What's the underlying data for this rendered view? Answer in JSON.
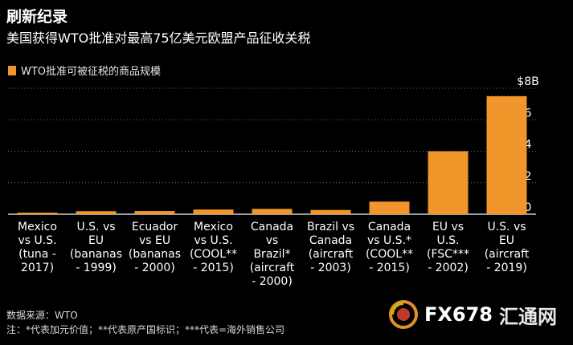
{
  "title": "刷新纪录",
  "subtitle": "美国获得WTO批准对最高75亿美元欧盟产品征收关税",
  "footer": {
    "source": "数据来源：WTO",
    "note": "注：*代表加元价值；**代表原产国标识；***代表=海外销售公司"
  },
  "watermark": {
    "text": "FX678",
    "cn": "汇通网"
  },
  "colors": {
    "bar": "#f0962a",
    "background": "#000000",
    "grid": "#6e6e6e",
    "axis": "#cfcfcf"
  },
  "chart_data": {
    "type": "bar",
    "series": [
      {
        "name": "WTO批准可被征税的商品规模",
        "values": [
          0.1,
          0.19,
          0.2,
          0.3,
          0.34,
          0.27,
          0.8,
          4.0,
          7.5
        ]
      }
    ],
    "categories": [
      [
        "Mexico",
        "vs U.S.",
        "(tuna -",
        "2017)"
      ],
      [
        "U.S. vs",
        "EU",
        "(bananas",
        "- 1999)"
      ],
      [
        "Ecuador",
        "vs EU",
        "(bananas",
        "- 2000)"
      ],
      [
        "Mexico",
        "vs U.S.",
        "(COOL**",
        "- 2015)"
      ],
      [
        "Canada",
        "vs",
        "Brazil*",
        "(aircraft",
        "- 2000)"
      ],
      [
        "Brazil vs",
        "Canada",
        "(aircraft",
        "- 2003)"
      ],
      [
        "Canada",
        "vs U.S.*",
        "(COOL**",
        "- 2015)"
      ],
      [
        "EU vs",
        "U.S.",
        "(FSC***",
        "- 2002)"
      ],
      [
        "U.S. vs",
        "EU",
        "(aircraft",
        "- 2019)"
      ]
    ],
    "yticks": [
      "0",
      "2",
      "4",
      "6",
      "$8B"
    ],
    "ylim": [
      0,
      8
    ],
    "grid": true,
    "y_axis_side": "right",
    "legend_position": "top-left"
  }
}
